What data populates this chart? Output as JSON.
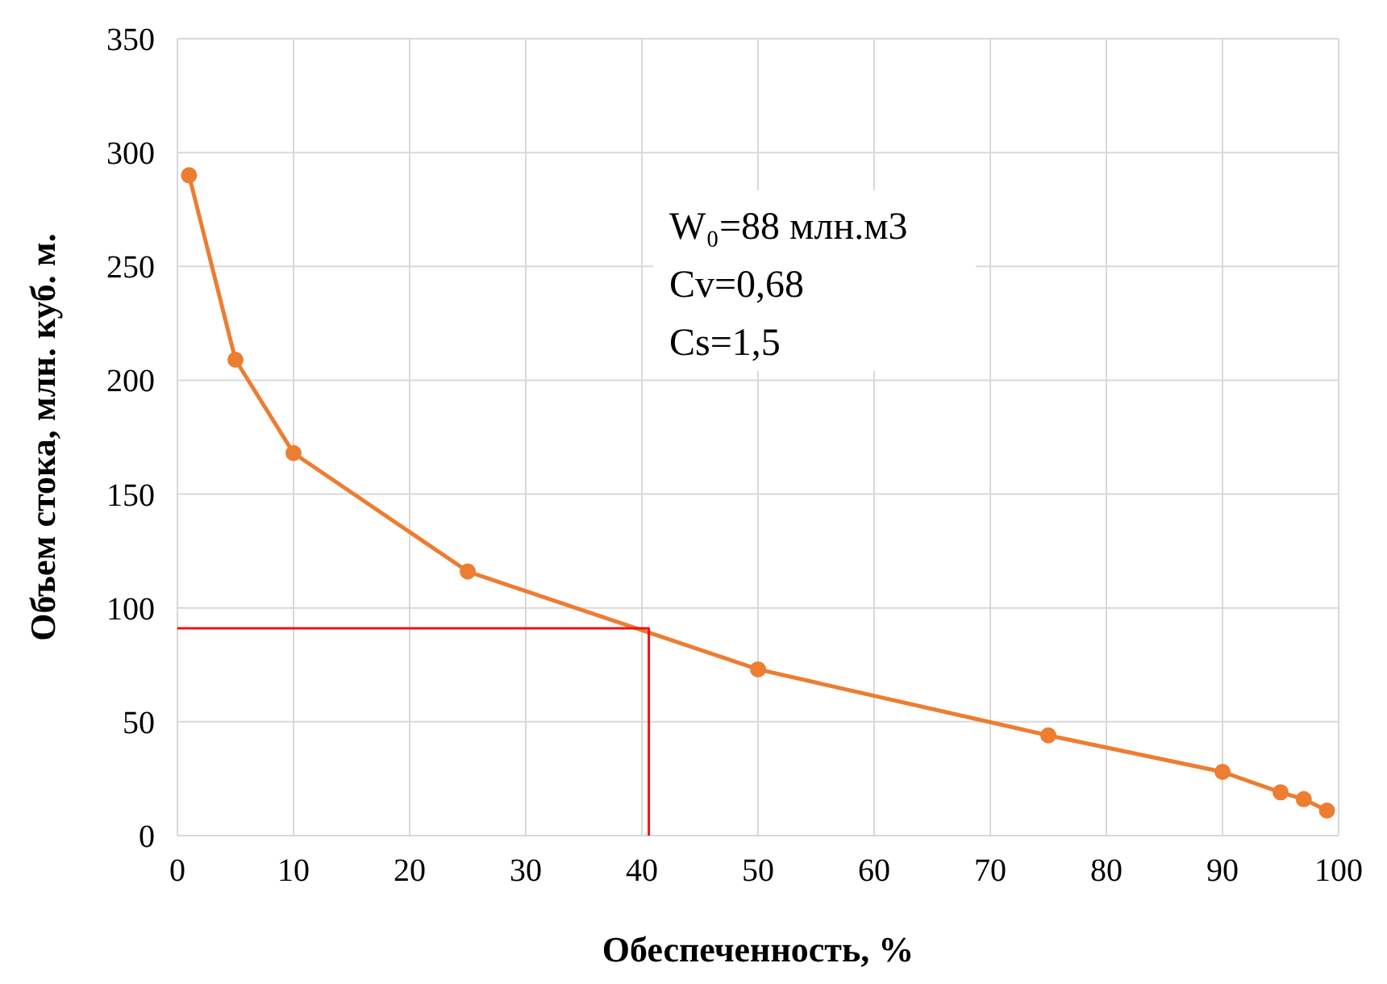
{
  "chart_data": {
    "type": "line",
    "xlabel": "Обеспеченность, %",
    "ylabel": "Объем стока, млн. куб. м.",
    "annotations": [
      "W₀=88 млн.м3",
      "Cv=0,68",
      "Cs=1,5"
    ],
    "series": [
      {
        "color": "#ed7d31",
        "marker": "circle",
        "x": [
          1,
          5,
          10,
          25,
          50,
          75,
          90,
          95,
          97,
          99
        ],
        "values": [
          290,
          209,
          168,
          116,
          73,
          44,
          28,
          19,
          16,
          11
        ]
      },
      {
        "color": "#e8141b",
        "marker": "none",
        "x": [
          0,
          40.6,
          40.6
        ],
        "values": [
          91,
          91,
          0
        ]
      }
    ],
    "xlim": [
      0,
      100
    ],
    "xticks": [
      0,
      10,
      20,
      30,
      40,
      50,
      60,
      70,
      80,
      90,
      100
    ],
    "ylim": [
      0,
      350
    ],
    "yticks": [
      0,
      50,
      100,
      150,
      200,
      250,
      300,
      350
    ],
    "grid": true
  }
}
